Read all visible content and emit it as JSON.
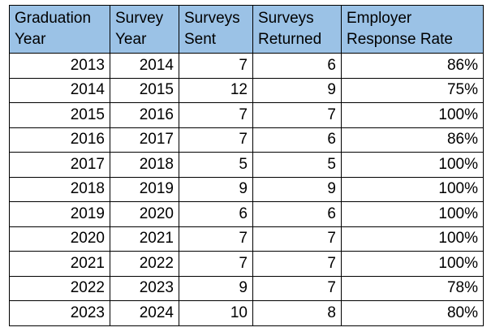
{
  "table": {
    "headers": [
      [
        "Graduation",
        "Year"
      ],
      [
        "Survey",
        "Year"
      ],
      [
        "Surveys",
        "Sent"
      ],
      [
        "Surveys",
        "Returned"
      ],
      [
        "Employer",
        "Response Rate"
      ]
    ],
    "rows": [
      [
        "2013",
        "2014",
        "7",
        "6",
        "86%"
      ],
      [
        "2014",
        "2015",
        "12",
        "9",
        "75%"
      ],
      [
        "2015",
        "2016",
        "7",
        "7",
        "100%"
      ],
      [
        "2016",
        "2017",
        "7",
        "6",
        "86%"
      ],
      [
        "2017",
        "2018",
        "5",
        "5",
        "100%"
      ],
      [
        "2018",
        "2019",
        "9",
        "9",
        "100%"
      ],
      [
        "2019",
        "2020",
        "6",
        "6",
        "100%"
      ],
      [
        "2020",
        "2021",
        "7",
        "7",
        "100%"
      ],
      [
        "2021",
        "2022",
        "7",
        "7",
        "100%"
      ],
      [
        "2022",
        "2023",
        "9",
        "7",
        "78%"
      ],
      [
        "2023",
        "2024",
        "10",
        "8",
        "80%"
      ]
    ],
    "colors": {
      "header_background": "#9bc2e6",
      "border": "#000000",
      "text": "#000000"
    }
  }
}
